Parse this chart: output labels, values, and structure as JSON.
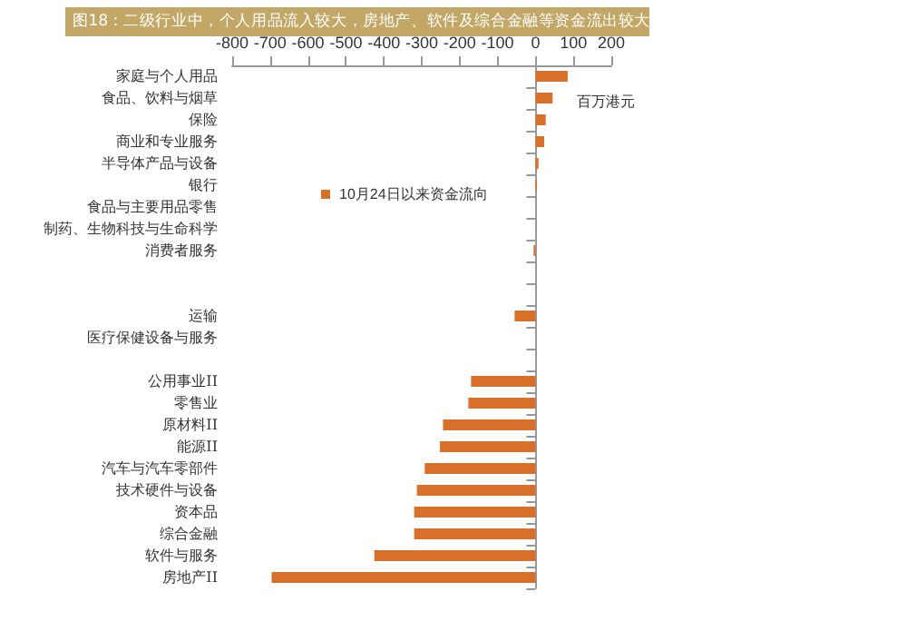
{
  "chart_data": {
    "type": "bar",
    "orientation": "horizontal",
    "title": "图18：二级行业中，个人用品流入较大，房地产、软件及综合金融等资金流出较大",
    "categories": [
      "家庭与个人用品",
      "食品、饮料与烟草",
      "保险",
      "商业和专业服务",
      "半导体产品与设备",
      "银行",
      "食品与主要用品零售",
      "制药、生物科技与生命科学",
      "消费者服务",
      null,
      null,
      "运输",
      "医疗保健设备与服务",
      null,
      "公用事业II",
      "零售业",
      "原材料II",
      "能源II",
      "汽车与汽车零部件",
      "技术硬件与设备",
      "资本品",
      "综合金融",
      "软件与服务",
      "房地产II"
    ],
    "series": [
      {
        "name": "10月24日以来资金流向",
        "color": "#d9702a",
        "values": [
          85,
          45,
          27,
          23,
          8,
          4,
          0,
          0,
          -5,
          null,
          null,
          -55,
          null,
          null,
          -170,
          -177,
          -244,
          -252,
          -292,
          -313,
          -320,
          -320,
          -425,
          -696
        ]
      }
    ],
    "xlim": [
      -800,
      200
    ],
    "xticks": [
      -800,
      -700,
      -600,
      -500,
      -400,
      -300,
      -200,
      -100,
      0,
      100,
      200
    ],
    "legend": "left",
    "annotations": [
      "百万港元"
    ]
  }
}
